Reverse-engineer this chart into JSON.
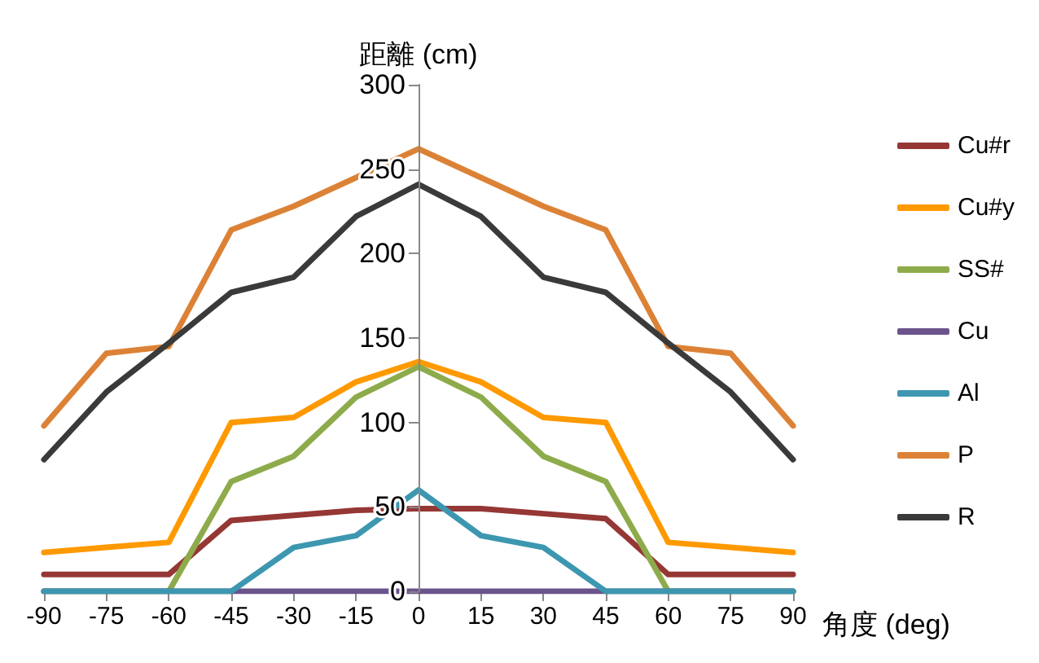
{
  "chart_data": {
    "type": "line",
    "xlabel": "角度 (deg)",
    "ylabel": "距離 (cm)",
    "x": [
      -90,
      -75,
      -60,
      -45,
      -30,
      -15,
      0,
      15,
      30,
      45,
      60,
      75,
      90
    ],
    "xlim": [
      -90,
      90
    ],
    "xticks": [
      -90,
      -75,
      -60,
      -45,
      -30,
      -15,
      0,
      15,
      30,
      45,
      60,
      75,
      90
    ],
    "ylim": [
      0,
      300
    ],
    "yticks": [
      0,
      50,
      100,
      150,
      200,
      250,
      300
    ],
    "grid": false,
    "legend": "right",
    "marker": "none",
    "line_style": "solid",
    "series": [
      {
        "name": "Cu#r",
        "color": "#953735",
        "values": [
          10,
          10,
          10,
          42,
          45,
          48,
          49,
          49,
          46,
          43,
          10,
          10,
          10
        ]
      },
      {
        "name": "Cu#y",
        "color": "#ff9900",
        "values": [
          23,
          26,
          29,
          100,
          103,
          124,
          136,
          124,
          103,
          100,
          29,
          26,
          23
        ]
      },
      {
        "name": "SS#",
        "color": "#8eab4b",
        "values": [
          0,
          0,
          0,
          65,
          80,
          115,
          133,
          115,
          80,
          65,
          0,
          0,
          0
        ]
      },
      {
        "name": "Cu",
        "color": "#6b548c",
        "values": [
          0,
          0,
          0,
          0,
          0,
          0,
          0,
          0,
          0,
          0,
          0,
          0,
          0
        ]
      },
      {
        "name": "Al",
        "color": "#3d97b0",
        "values": [
          0,
          0,
          0,
          0,
          26,
          33,
          60,
          33,
          26,
          0,
          0,
          0,
          0
        ]
      },
      {
        "name": "P",
        "color": "#dc8236",
        "values": [
          98,
          141,
          145,
          214,
          228,
          245,
          262,
          245,
          228,
          214,
          145,
          141,
          98
        ]
      },
      {
        "name": "R",
        "color": "#3a3a3a",
        "values": [
          78,
          118,
          147,
          177,
          186,
          222,
          241,
          222,
          186,
          177,
          147,
          118,
          78
        ]
      }
    ]
  }
}
